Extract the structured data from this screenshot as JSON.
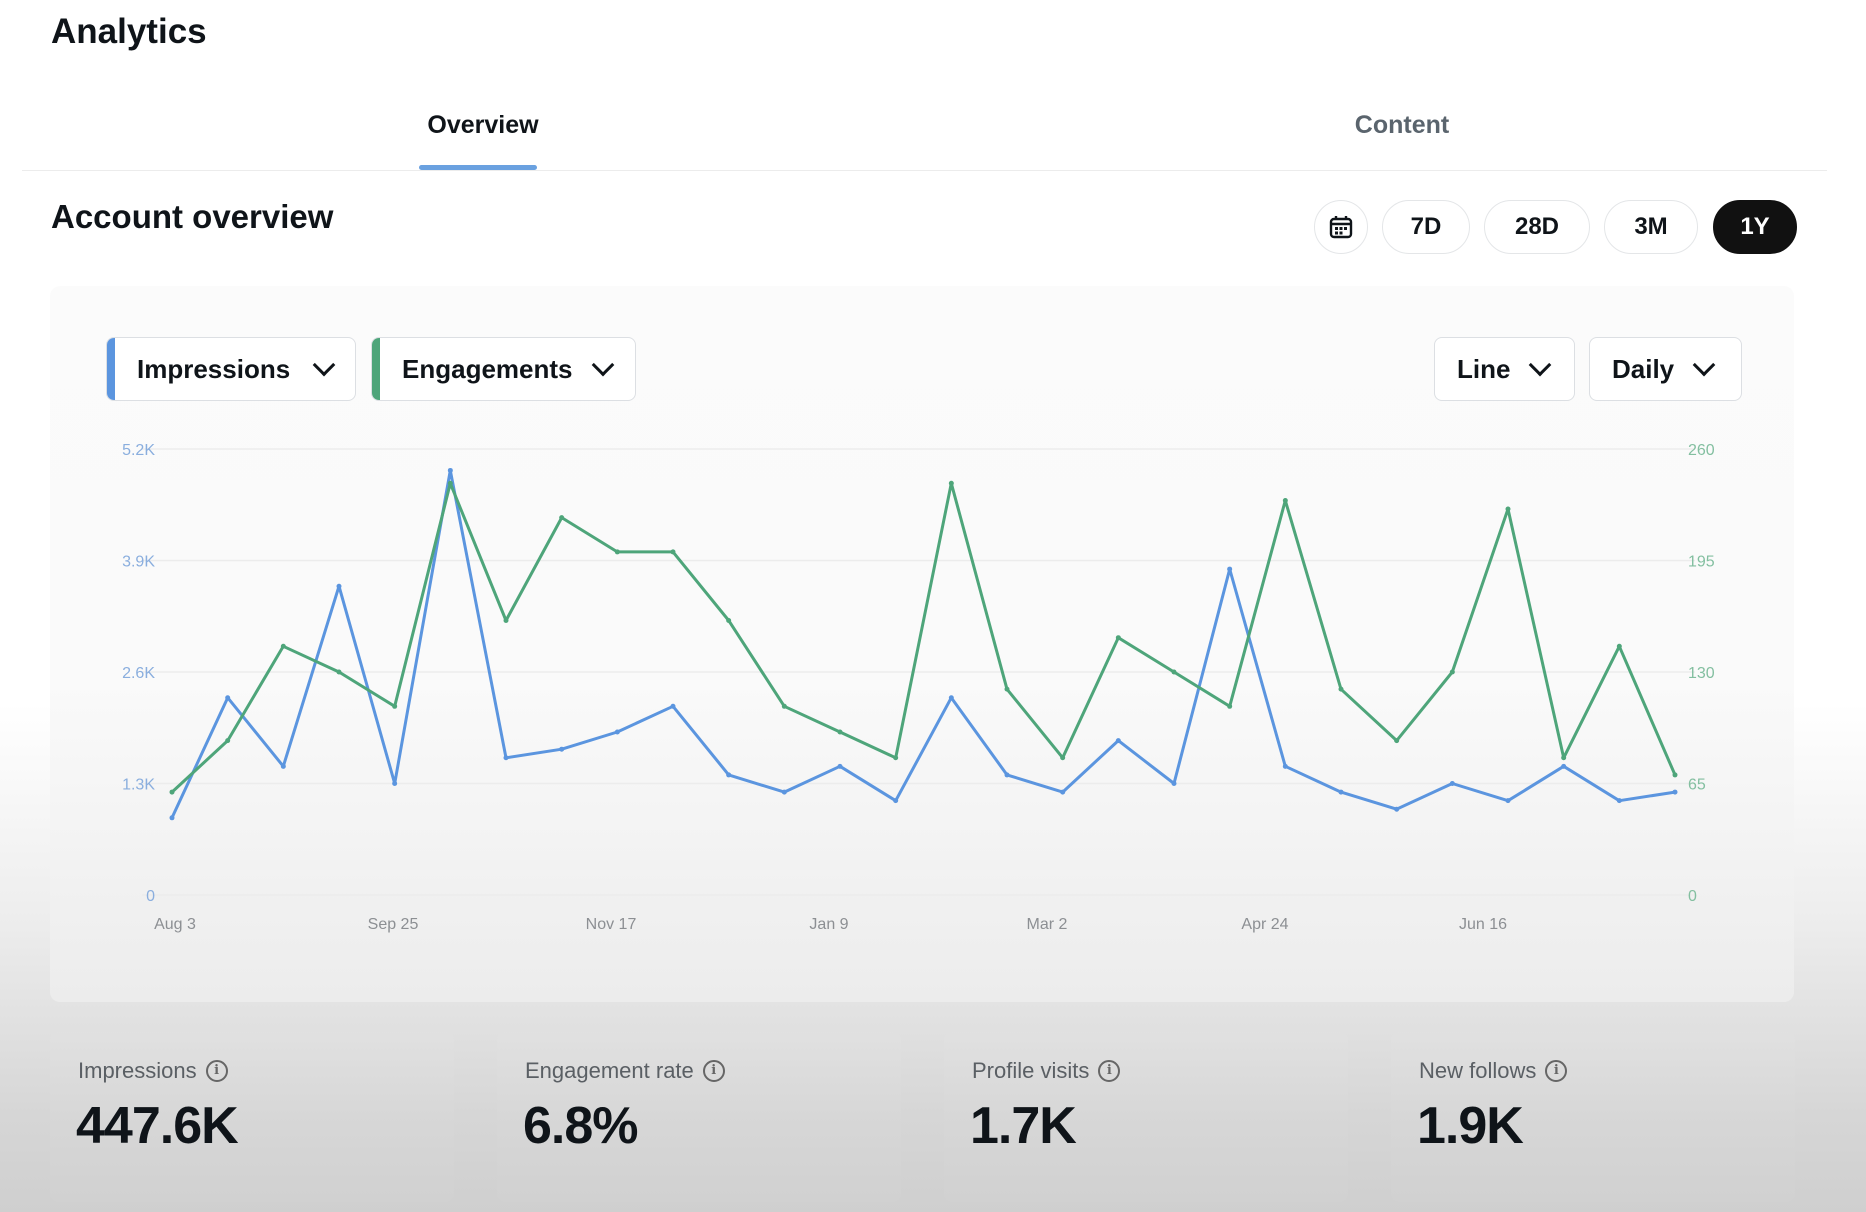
{
  "app": {
    "title": "Analytics"
  },
  "tabs": [
    {
      "label": "Overview",
      "active": true
    },
    {
      "label": "Content",
      "active": false
    }
  ],
  "section": {
    "title": "Account overview"
  },
  "date_range": {
    "calendar_icon": "calendar-icon",
    "options": [
      "7D",
      "28D",
      "3M",
      "1Y"
    ],
    "selected": "1Y"
  },
  "controls": {
    "metric_left": "Impressions",
    "metric_right": "Engagements",
    "chart_type": "Line",
    "granularity": "Daily"
  },
  "colors": {
    "impressions": "#5b95df",
    "engagements": "#4ea57a",
    "active": "#111111"
  },
  "stats": [
    {
      "label": "Impressions",
      "value": "447.6K"
    },
    {
      "label": "Engagement rate",
      "value": "6.8%"
    },
    {
      "label": "Profile visits",
      "value": "1.7K"
    },
    {
      "label": "New follows",
      "value": "1.9K"
    }
  ],
  "chart_data": {
    "type": "line",
    "x_ticks": [
      "Aug 3",
      "Sep 25",
      "Nov 17",
      "Jan 9",
      "Mar 2",
      "Apr 24",
      "Jun 16"
    ],
    "y_left_ticks": [
      "0",
      "1.3K",
      "2.6K",
      "3.9K",
      "5.2K"
    ],
    "y_right_ticks": [
      "0",
      "65",
      "130",
      "195",
      "260"
    ],
    "ylim_left": [
      0,
      5200
    ],
    "ylim_right": [
      0,
      260
    ],
    "grid": true,
    "series": [
      {
        "name": "Impressions",
        "axis": "left",
        "x": [
          "Aug 3",
          "Aug 17",
          "Aug 31",
          "Sep 10",
          "Sep 25",
          "Oct 9",
          "Oct 23",
          "Nov 7",
          "Nov 17",
          "Dec 1",
          "Dec 15",
          "Dec 29",
          "Jan 9",
          "Jan 23",
          "Feb 6",
          "Feb 20",
          "Mar 2",
          "Mar 16",
          "Mar 30",
          "Apr 13",
          "Apr 24",
          "May 8",
          "May 22",
          "Jun 5",
          "Jun 16",
          "Jun 30",
          "Jul 14",
          "Jul 28"
        ],
        "values": [
          900,
          2300,
          1500,
          3600,
          1300,
          4950,
          1600,
          1700,
          1900,
          2200,
          1400,
          1200,
          1500,
          1100,
          2300,
          1400,
          1200,
          1800,
          1300,
          3800,
          1500,
          1200,
          1000,
          1300,
          1100,
          1500,
          1100,
          1200
        ]
      },
      {
        "name": "Engagements",
        "axis": "right",
        "x": [
          "Aug 3",
          "Aug 17",
          "Aug 31",
          "Sep 10",
          "Sep 25",
          "Oct 9",
          "Oct 23",
          "Nov 7",
          "Nov 17",
          "Dec 1",
          "Dec 15",
          "Dec 29",
          "Jan 9",
          "Jan 23",
          "Feb 6",
          "Feb 20",
          "Mar 2",
          "Mar 16",
          "Mar 30",
          "Apr 13",
          "Apr 24",
          "May 8",
          "May 22",
          "Jun 5",
          "Jun 16",
          "Jun 30",
          "Jul 14",
          "Jul 28"
        ],
        "values": [
          60,
          90,
          145,
          130,
          110,
          240,
          160,
          220,
          200,
          200,
          160,
          110,
          95,
          80,
          240,
          120,
          80,
          150,
          130,
          110,
          230,
          120,
          90,
          130,
          225,
          80,
          145,
          70
        ]
      }
    ]
  }
}
